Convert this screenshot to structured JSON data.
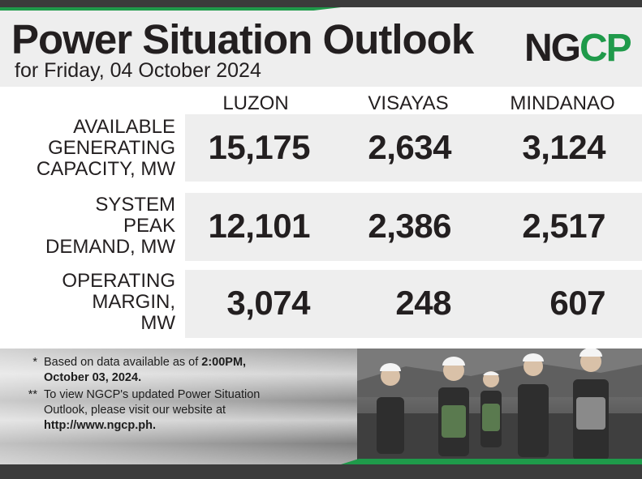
{
  "header": {
    "title": "Power Situation Outlook",
    "subtitle": "for Friday, 04 October 2024",
    "logo_text": "NGCP",
    "brand_green": "#1f9a4a",
    "brand_dark": "#231f20"
  },
  "regions": [
    "LUZON",
    "VISAYAS",
    "MINDANAO"
  ],
  "rows": [
    {
      "label": [
        "AVAILABLE",
        "GENERATING",
        "CAPACITY, MW"
      ],
      "values": [
        "15,175",
        "2,634",
        "3,124"
      ]
    },
    {
      "label": [
        "SYSTEM",
        "PEAK",
        "DEMAND, MW"
      ],
      "values": [
        "12,101",
        "2,386",
        "2,517"
      ]
    },
    {
      "label": [
        "OPERATING",
        "MARGIN,",
        "MW"
      ],
      "values": [
        "3,074",
        "248",
        "607"
      ]
    }
  ],
  "notes": [
    {
      "mark": "*",
      "text_a": "Based on data available as of ",
      "bold_a": "2:00PM,",
      "text_b": "",
      "bold_b": "October 03, 2024."
    },
    {
      "mark": "**",
      "text_a": "To view NGCP's updated Power Situation Outlook, please visit our website at ",
      "bold_a": "",
      "text_b": "",
      "bold_b": "http://www.ngcp.ph."
    }
  ],
  "footer_photo": {
    "description_icon": "workers-photo-icon"
  }
}
